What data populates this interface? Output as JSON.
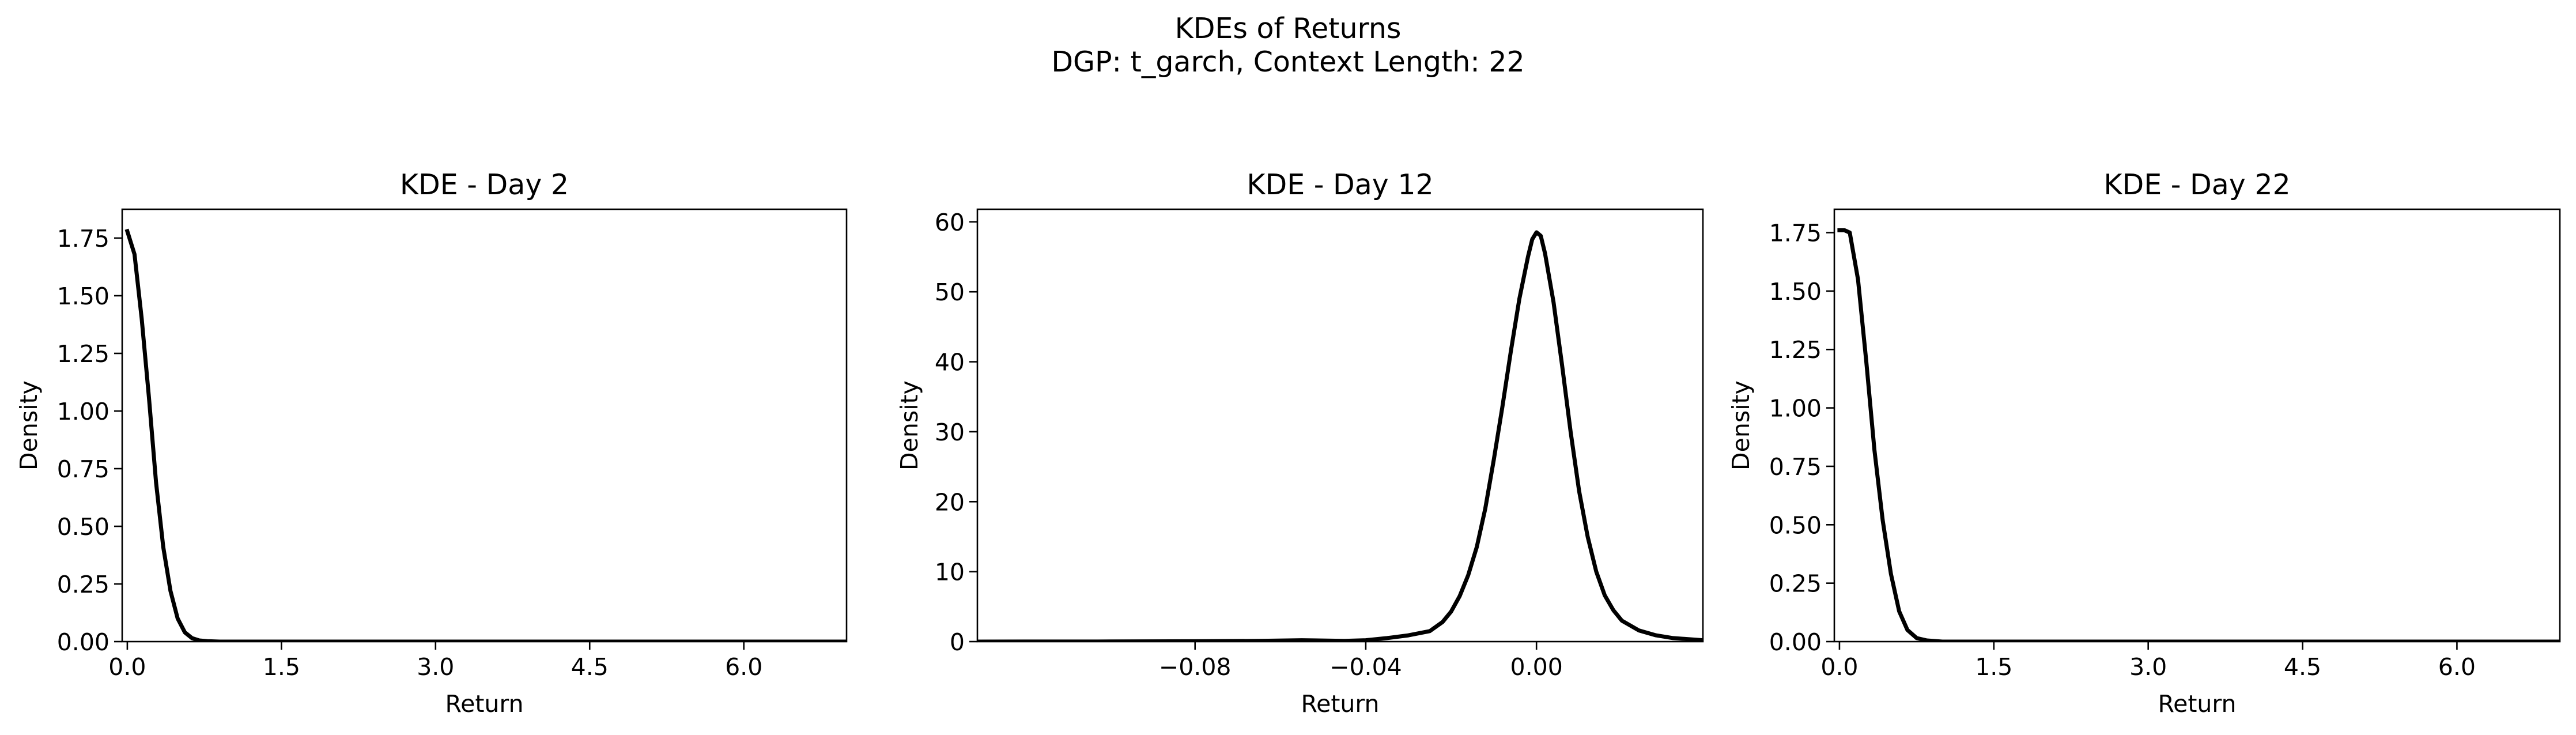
{
  "figure": {
    "title_line1": "KDEs of Returns",
    "title_line2": "DGP: t_garch, Context Length: 22"
  },
  "colors": {
    "line": "#000000",
    "axes": "#000000",
    "background": "#ffffff"
  },
  "chart_data": [
    {
      "type": "line",
      "title": "KDE - Day 2",
      "xlabel": "Return",
      "ylabel": "Density",
      "xlim": [
        -0.05,
        7.0
      ],
      "ylim": [
        0,
        1.875
      ],
      "grid": false,
      "xticks": [
        0.0,
        1.5,
        3.0,
        4.5,
        6.0
      ],
      "xtick_labels": [
        "0.0",
        "1.5",
        "3.0",
        "4.5",
        "6.0"
      ],
      "yticks": [
        0,
        0.25,
        0.5,
        0.75,
        1.0,
        1.25,
        1.5,
        1.75
      ],
      "ytick_labels": [
        "0.00",
        "0.25",
        "0.50",
        "0.75",
        "1.00",
        "1.25",
        "1.50",
        "1.75"
      ],
      "series": [
        {
          "x": [
            0.0,
            0.07,
            0.14,
            0.21,
            0.28,
            0.35,
            0.42,
            0.49,
            0.56,
            0.63,
            0.7,
            0.78,
            0.9,
            1.2,
            2.0,
            4.0,
            7.0
          ],
          "y": [
            1.78,
            1.68,
            1.4,
            1.06,
            0.69,
            0.41,
            0.22,
            0.1,
            0.04,
            0.015,
            0.005,
            0.002,
            0.0,
            0.0,
            0.0,
            0.0,
            0.0
          ]
        }
      ]
    },
    {
      "type": "line",
      "title": "KDE - Day 12",
      "xlabel": "Return",
      "ylabel": "Density",
      "xlim": [
        -0.131,
        0.039
      ],
      "ylim": [
        0,
        61.8
      ],
      "grid": false,
      "xticks": [
        -0.08,
        -0.04,
        0.0
      ],
      "xtick_labels": [
        "−0.08",
        "−0.04",
        "0.00"
      ],
      "yticks": [
        0,
        10,
        20,
        30,
        40,
        50,
        60
      ],
      "ytick_labels": [
        "0",
        "10",
        "20",
        "30",
        "40",
        "50",
        "60"
      ],
      "series": [
        {
          "x": [
            -0.131,
            -0.1,
            -0.08,
            -0.065,
            -0.055,
            -0.045,
            -0.04,
            -0.035,
            -0.03,
            -0.025,
            -0.022,
            -0.02,
            -0.018,
            -0.016,
            -0.014,
            -0.012,
            -0.01,
            -0.008,
            -0.006,
            -0.004,
            -0.002,
            -0.001,
            0.0,
            0.001,
            0.002,
            0.004,
            0.006,
            0.008,
            0.01,
            0.012,
            0.014,
            0.016,
            0.018,
            0.02,
            0.024,
            0.028,
            0.032,
            0.039
          ],
          "y": [
            0.0,
            0.02,
            0.05,
            0.1,
            0.2,
            0.1,
            0.2,
            0.5,
            0.9,
            1.5,
            2.8,
            4.3,
            6.5,
            9.5,
            13.5,
            19.0,
            26.0,
            33.5,
            41.5,
            49.0,
            55.0,
            57.5,
            58.5,
            58.0,
            55.5,
            48.5,
            39.5,
            30.0,
            21.5,
            15.0,
            10.0,
            6.6,
            4.5,
            3.0,
            1.6,
            0.9,
            0.5,
            0.2
          ]
        }
      ]
    },
    {
      "type": "line",
      "title": "KDE - Day 22",
      "xlabel": "Return",
      "ylabel": "Density",
      "xlim": [
        -0.05,
        7.0
      ],
      "ylim": [
        0,
        1.85
      ],
      "grid": false,
      "xticks": [
        0.0,
        1.5,
        3.0,
        4.5,
        6.0
      ],
      "xtick_labels": [
        "0.0",
        "1.5",
        "3.0",
        "4.5",
        "6.0"
      ],
      "yticks": [
        0,
        0.25,
        0.5,
        0.75,
        1.0,
        1.25,
        1.5,
        1.75
      ],
      "ytick_labels": [
        "0.00",
        "0.25",
        "0.50",
        "0.75",
        "1.00",
        "1.25",
        "1.50",
        "1.75"
      ],
      "series": [
        {
          "x": [
            0.0,
            0.05,
            0.1,
            0.18,
            0.26,
            0.34,
            0.42,
            0.5,
            0.58,
            0.66,
            0.75,
            0.85,
            1.0,
            1.5,
            3.0,
            5.0,
            7.0
          ],
          "y": [
            1.76,
            1.76,
            1.75,
            1.55,
            1.2,
            0.82,
            0.52,
            0.29,
            0.13,
            0.05,
            0.015,
            0.005,
            0.0,
            0.0,
            0.0,
            0.0,
            0.0
          ]
        }
      ]
    }
  ]
}
